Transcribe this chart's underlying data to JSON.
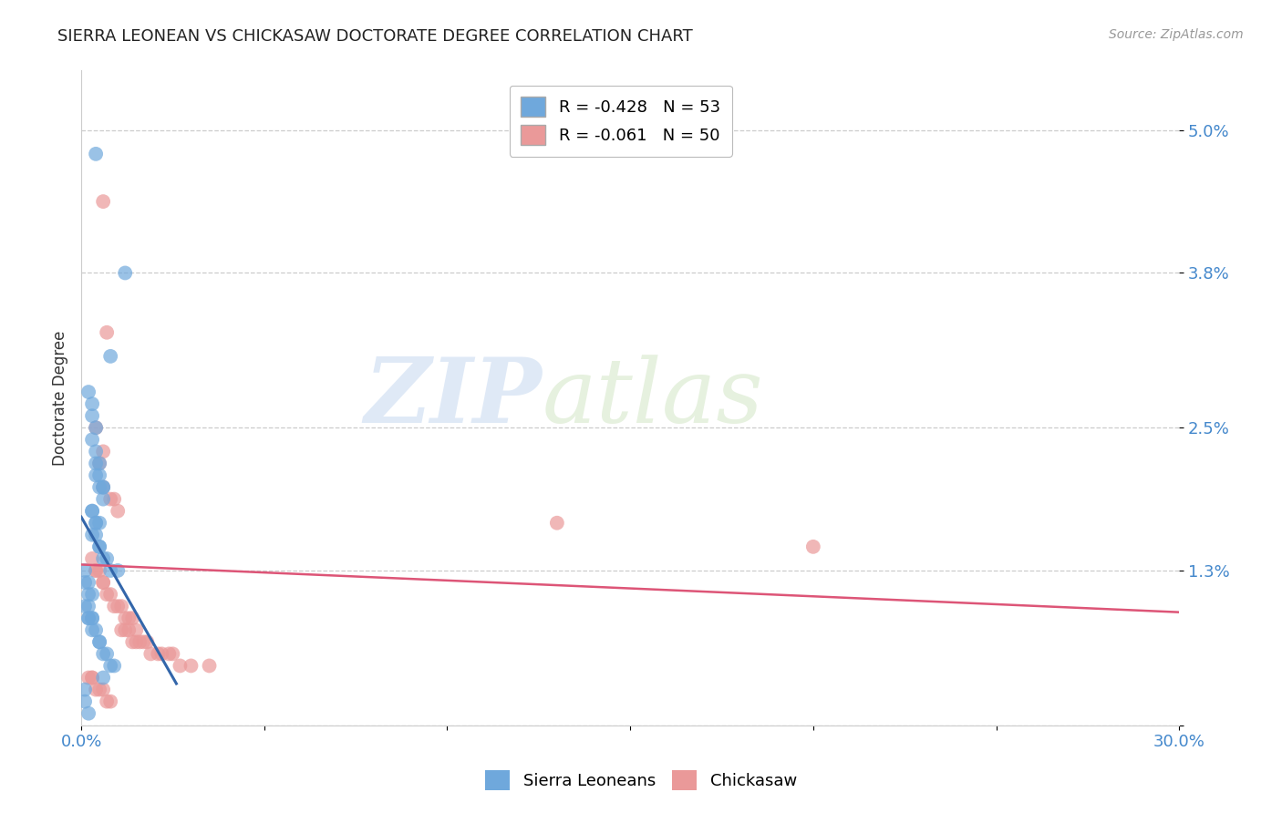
{
  "title": "SIERRA LEONEAN VS CHICKASAW DOCTORATE DEGREE CORRELATION CHART",
  "source": "Source: ZipAtlas.com",
  "ylabel": "Doctorate Degree",
  "xlim": [
    0.0,
    0.3
  ],
  "ylim": [
    0.0,
    0.055
  ],
  "blue_color": "#6fa8dc",
  "pink_color": "#ea9999",
  "blue_line_color": "#3366aa",
  "pink_line_color": "#dd5577",
  "legend_blue_label": "R = -0.428   N = 53",
  "legend_pink_label": "R = -0.061   N = 50",
  "legend_sierra": "Sierra Leoneans",
  "legend_chickasaw": "Chickasaw",
  "watermark_zip": "ZIP",
  "watermark_atlas": "atlas",
  "background_color": "#ffffff",
  "grid_color": "#cccccc",
  "title_color": "#222222",
  "axis_tick_color": "#4488cc",
  "ylabel_color": "#333333",
  "blue_x": [
    0.004,
    0.012,
    0.008,
    0.002,
    0.003,
    0.003,
    0.004,
    0.003,
    0.004,
    0.004,
    0.005,
    0.004,
    0.005,
    0.006,
    0.005,
    0.006,
    0.006,
    0.003,
    0.003,
    0.004,
    0.004,
    0.005,
    0.003,
    0.004,
    0.005,
    0.005,
    0.006,
    0.007,
    0.008,
    0.01,
    0.001,
    0.001,
    0.002,
    0.002,
    0.003,
    0.001,
    0.002,
    0.002,
    0.002,
    0.003,
    0.003,
    0.003,
    0.004,
    0.005,
    0.005,
    0.006,
    0.007,
    0.008,
    0.009,
    0.006,
    0.001,
    0.001,
    0.002
  ],
  "blue_y": [
    0.048,
    0.038,
    0.031,
    0.028,
    0.027,
    0.026,
    0.025,
    0.024,
    0.023,
    0.022,
    0.022,
    0.021,
    0.021,
    0.02,
    0.02,
    0.02,
    0.019,
    0.018,
    0.018,
    0.017,
    0.017,
    0.017,
    0.016,
    0.016,
    0.015,
    0.015,
    0.014,
    0.014,
    0.013,
    0.013,
    0.013,
    0.012,
    0.012,
    0.011,
    0.011,
    0.01,
    0.01,
    0.009,
    0.009,
    0.009,
    0.009,
    0.008,
    0.008,
    0.007,
    0.007,
    0.006,
    0.006,
    0.005,
    0.005,
    0.004,
    0.003,
    0.002,
    0.001
  ],
  "pink_x": [
    0.006,
    0.007,
    0.004,
    0.006,
    0.005,
    0.006,
    0.008,
    0.009,
    0.01,
    0.003,
    0.004,
    0.004,
    0.005,
    0.006,
    0.006,
    0.007,
    0.008,
    0.009,
    0.01,
    0.011,
    0.012,
    0.013,
    0.014,
    0.011,
    0.012,
    0.013,
    0.015,
    0.014,
    0.015,
    0.016,
    0.017,
    0.018,
    0.019,
    0.021,
    0.022,
    0.024,
    0.025,
    0.027,
    0.03,
    0.035,
    0.002,
    0.003,
    0.003,
    0.004,
    0.005,
    0.006,
    0.007,
    0.008,
    0.2,
    0.13
  ],
  "pink_y": [
    0.044,
    0.033,
    0.025,
    0.023,
    0.022,
    0.02,
    0.019,
    0.019,
    0.018,
    0.014,
    0.013,
    0.013,
    0.013,
    0.012,
    0.012,
    0.011,
    0.011,
    0.01,
    0.01,
    0.01,
    0.009,
    0.009,
    0.009,
    0.008,
    0.008,
    0.008,
    0.008,
    0.007,
    0.007,
    0.007,
    0.007,
    0.007,
    0.006,
    0.006,
    0.006,
    0.006,
    0.006,
    0.005,
    0.005,
    0.005,
    0.004,
    0.004,
    0.004,
    0.003,
    0.003,
    0.003,
    0.002,
    0.002,
    0.015,
    0.017
  ],
  "blue_line_x": [
    0.0,
    0.026
  ],
  "blue_line_y": [
    0.0175,
    0.0035
  ],
  "pink_line_x": [
    0.0,
    0.3
  ],
  "pink_line_y": [
    0.0135,
    0.0095
  ]
}
